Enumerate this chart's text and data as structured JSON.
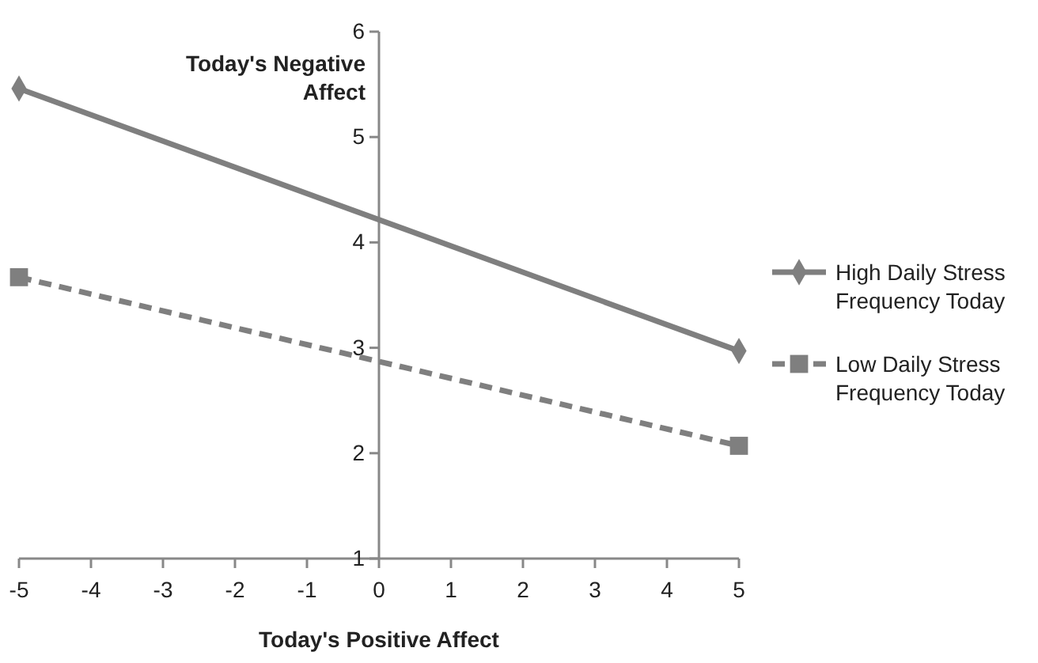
{
  "chart_data": {
    "type": "line",
    "xlabel": "Today's Positive Affect",
    "ylabel": "Today's Negative Affect",
    "x": [
      -5,
      5
    ],
    "series": [
      {
        "name": "High Daily Stress Frequency Today",
        "color": "#7f7f7f",
        "values": [
          5.46,
          2.97
        ],
        "marker": "diamond",
        "line_style": "solid"
      },
      {
        "name": "Low Daily Stress Frequency Today",
        "color": "#7f7f7f",
        "values": [
          3.67,
          2.07
        ],
        "marker": "square",
        "line_style": "dashed"
      }
    ],
    "xlim": [
      -5,
      5
    ],
    "xticks": [
      -5,
      -4,
      -3,
      -2,
      -1,
      0,
      1,
      2,
      3,
      4,
      5
    ],
    "ylim": [
      1,
      6
    ],
    "yticks": [
      1,
      2,
      3,
      4,
      5,
      6
    ],
    "grid": false,
    "legend": "right"
  }
}
